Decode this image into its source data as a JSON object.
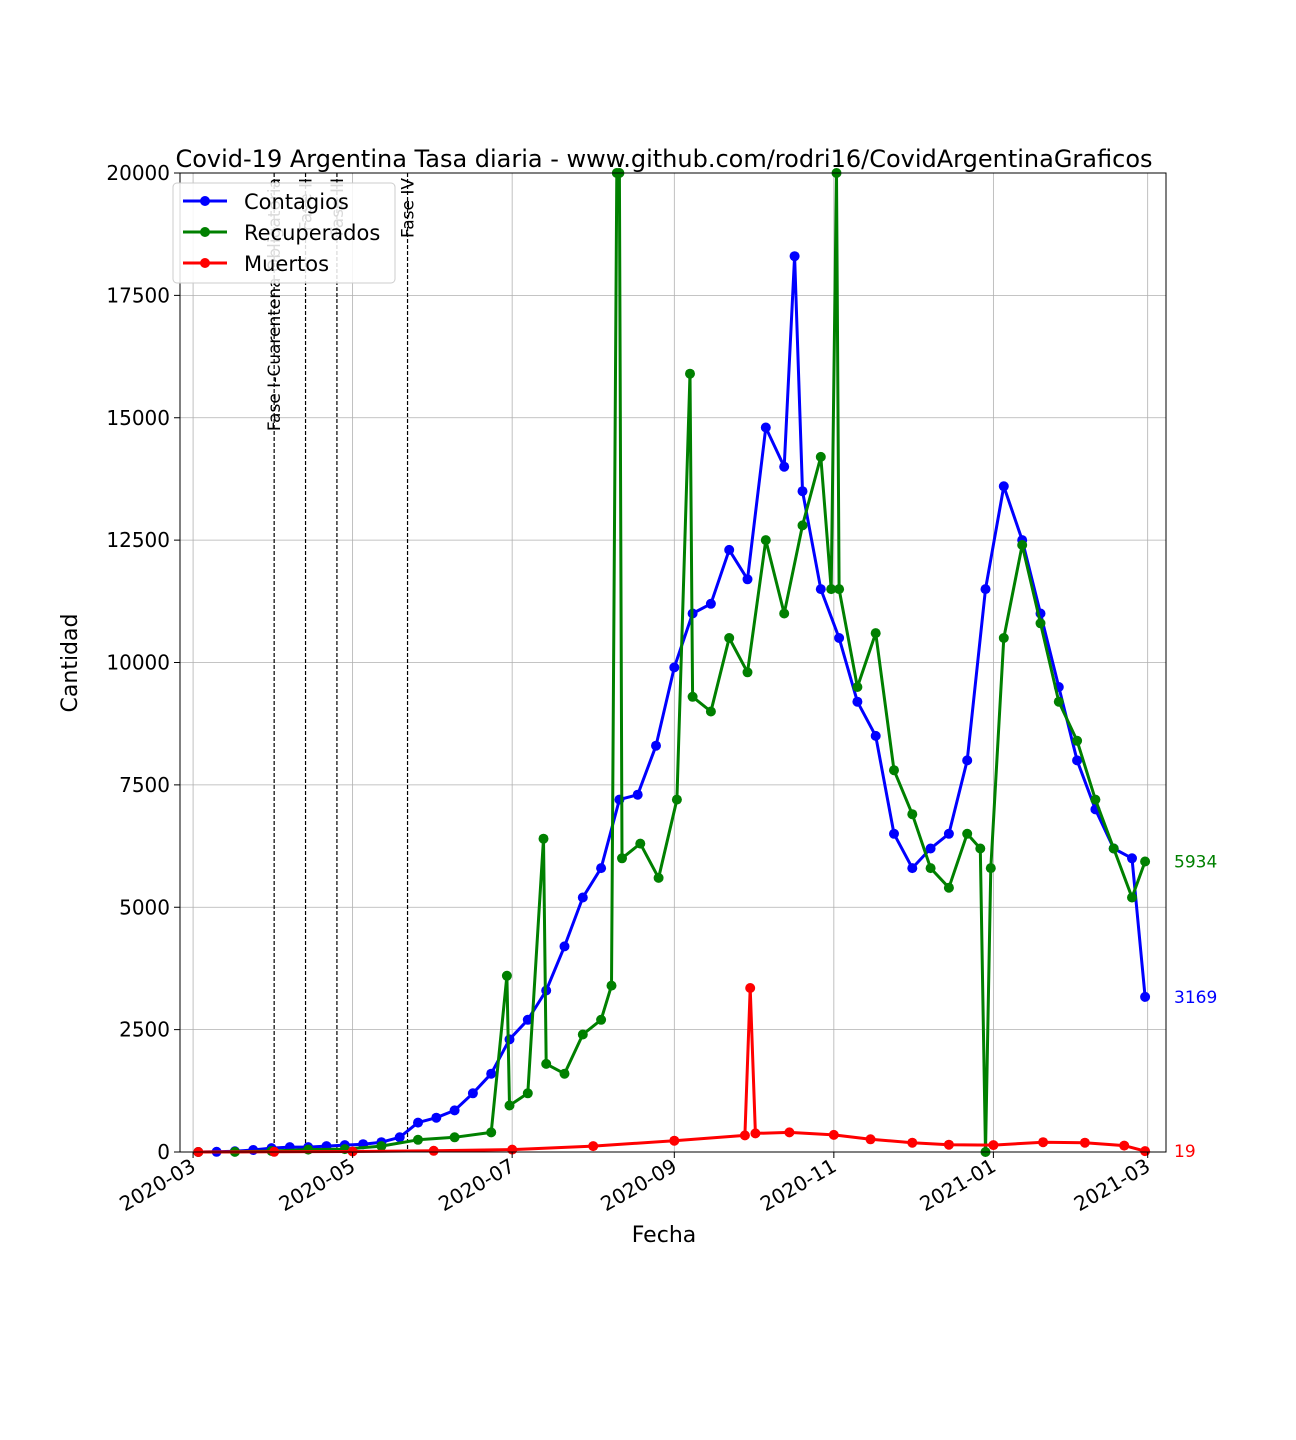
{
  "chart_data": {
    "type": "line",
    "title": "Covid-19 Argentina Tasa diaria - www.github.com/rodri16/CovidArgentinaGraficos",
    "xlabel": "Fecha",
    "ylabel": "Cantidad",
    "xlim": [
      "2020-02-25",
      "2021-03-08"
    ],
    "ylim": [
      0,
      20000
    ],
    "x_ticks": [
      "2020-03",
      "2020-05",
      "2020-07",
      "2020-09",
      "2020-11",
      "2021-01",
      "2021-03"
    ],
    "x_tick_dates": [
      "2020-03-01",
      "2020-05-01",
      "2020-07-01",
      "2020-09-01",
      "2020-11-01",
      "2021-01-01",
      "2021-03-01"
    ],
    "y_ticks": [
      0,
      2500,
      5000,
      7500,
      10000,
      12500,
      15000,
      17500,
      20000
    ],
    "grid": true,
    "legend_position": "top-left",
    "phases": [
      {
        "label": "Fase I-Cuarentena Obligatoria",
        "date": "2020-04-01"
      },
      {
        "label": "Fase II",
        "date": "2020-04-13"
      },
      {
        "label": "Fase III",
        "date": "2020-04-25"
      },
      {
        "label": "Fase IV",
        "date": "2020-05-22"
      }
    ],
    "series": [
      {
        "name": "Contagios",
        "color": "#0000ff",
        "end_label": "3169",
        "points": [
          [
            "2020-03-03",
            1
          ],
          [
            "2020-03-10",
            5
          ],
          [
            "2020-03-17",
            14
          ],
          [
            "2020-03-24",
            40
          ],
          [
            "2020-03-31",
            80
          ],
          [
            "2020-04-07",
            100
          ],
          [
            "2020-04-14",
            100
          ],
          [
            "2020-04-21",
            120
          ],
          [
            "2020-04-28",
            140
          ],
          [
            "2020-05-05",
            160
          ],
          [
            "2020-05-12",
            200
          ],
          [
            "2020-05-19",
            300
          ],
          [
            "2020-05-26",
            600
          ],
          [
            "2020-06-02",
            700
          ],
          [
            "2020-06-09",
            850
          ],
          [
            "2020-06-16",
            1200
          ],
          [
            "2020-06-23",
            1600
          ],
          [
            "2020-06-30",
            2300
          ],
          [
            "2020-07-07",
            2700
          ],
          [
            "2020-07-14",
            3300
          ],
          [
            "2020-07-21",
            4200
          ],
          [
            "2020-07-28",
            5200
          ],
          [
            "2020-08-04",
            5800
          ],
          [
            "2020-08-11",
            7200
          ],
          [
            "2020-08-18",
            7300
          ],
          [
            "2020-08-25",
            8300
          ],
          [
            "2020-09-01",
            9900
          ],
          [
            "2020-09-08",
            11000
          ],
          [
            "2020-09-15",
            11200
          ],
          [
            "2020-09-22",
            12300
          ],
          [
            "2020-09-29",
            11700
          ],
          [
            "2020-10-06",
            14800
          ],
          [
            "2020-10-13",
            14000
          ],
          [
            "2020-10-17",
            18300
          ],
          [
            "2020-10-20",
            13500
          ],
          [
            "2020-10-27",
            11500
          ],
          [
            "2020-11-03",
            10500
          ],
          [
            "2020-11-10",
            9200
          ],
          [
            "2020-11-17",
            8500
          ],
          [
            "2020-11-24",
            6500
          ],
          [
            "2020-12-01",
            5800
          ],
          [
            "2020-12-08",
            6200
          ],
          [
            "2020-12-15",
            6500
          ],
          [
            "2020-12-22",
            8000
          ],
          [
            "2020-12-29",
            11500
          ],
          [
            "2021-01-05",
            13600
          ],
          [
            "2021-01-12",
            12500
          ],
          [
            "2021-01-19",
            11000
          ],
          [
            "2021-01-26",
            9500
          ],
          [
            "2021-02-02",
            8000
          ],
          [
            "2021-02-09",
            7000
          ],
          [
            "2021-02-16",
            6200
          ],
          [
            "2021-02-23",
            6000
          ],
          [
            "2021-02-28",
            3169
          ]
        ]
      },
      {
        "name": "Recuperados",
        "color": "#008000",
        "end_label": "5934",
        "points": [
          [
            "2020-03-03",
            0
          ],
          [
            "2020-03-17",
            2
          ],
          [
            "2020-03-31",
            20
          ],
          [
            "2020-04-14",
            50
          ],
          [
            "2020-04-28",
            60
          ],
          [
            "2020-05-12",
            120
          ],
          [
            "2020-05-26",
            250
          ],
          [
            "2020-06-09",
            300
          ],
          [
            "2020-06-23",
            400
          ],
          [
            "2020-06-29",
            3600
          ],
          [
            "2020-06-30",
            950
          ],
          [
            "2020-07-07",
            1200
          ],
          [
            "2020-07-13",
            6400
          ],
          [
            "2020-07-14",
            1800
          ],
          [
            "2020-07-21",
            1600
          ],
          [
            "2020-07-28",
            2400
          ],
          [
            "2020-08-04",
            2700
          ],
          [
            "2020-08-08",
            3400
          ],
          [
            "2020-08-10",
            20000
          ],
          [
            "2020-08-11",
            20000
          ],
          [
            "2020-08-12",
            6000
          ],
          [
            "2020-08-19",
            6300
          ],
          [
            "2020-08-26",
            5600
          ],
          [
            "2020-09-02",
            7200
          ],
          [
            "2020-09-07",
            15900
          ],
          [
            "2020-09-08",
            9300
          ],
          [
            "2020-09-15",
            9000
          ],
          [
            "2020-09-22",
            10500
          ],
          [
            "2020-09-29",
            9800
          ],
          [
            "2020-10-06",
            12500
          ],
          [
            "2020-10-13",
            11000
          ],
          [
            "2020-10-20",
            12800
          ],
          [
            "2020-10-27",
            14200
          ],
          [
            "2020-10-31",
            11500
          ],
          [
            "2020-11-02",
            20000
          ],
          [
            "2020-11-03",
            11500
          ],
          [
            "2020-11-10",
            9500
          ],
          [
            "2020-11-17",
            10600
          ],
          [
            "2020-11-24",
            7800
          ],
          [
            "2020-12-01",
            6900
          ],
          [
            "2020-12-08",
            5800
          ],
          [
            "2020-12-15",
            5400
          ],
          [
            "2020-12-22",
            6500
          ],
          [
            "2020-12-27",
            6200
          ],
          [
            "2020-12-29",
            0
          ],
          [
            "2020-12-31",
            5800
          ],
          [
            "2021-01-05",
            10500
          ],
          [
            "2021-01-12",
            12400
          ],
          [
            "2021-01-19",
            10800
          ],
          [
            "2021-01-26",
            9200
          ],
          [
            "2021-02-02",
            8400
          ],
          [
            "2021-02-09",
            7200
          ],
          [
            "2021-02-16",
            6200
          ],
          [
            "2021-02-23",
            5200
          ],
          [
            "2021-02-28",
            5934
          ]
        ]
      },
      {
        "name": "Muertos",
        "color": "#ff0000",
        "end_label": "19",
        "points": [
          [
            "2020-03-03",
            0
          ],
          [
            "2020-04-01",
            5
          ],
          [
            "2020-05-01",
            10
          ],
          [
            "2020-06-01",
            25
          ],
          [
            "2020-07-01",
            50
          ],
          [
            "2020-08-01",
            120
          ],
          [
            "2020-09-01",
            230
          ],
          [
            "2020-09-28",
            340
          ],
          [
            "2020-09-30",
            3350
          ],
          [
            "2020-10-02",
            380
          ],
          [
            "2020-10-15",
            400
          ],
          [
            "2020-11-01",
            350
          ],
          [
            "2020-11-15",
            260
          ],
          [
            "2020-12-01",
            190
          ],
          [
            "2020-12-15",
            150
          ],
          [
            "2021-01-01",
            140
          ],
          [
            "2021-01-20",
            200
          ],
          [
            "2021-02-05",
            190
          ],
          [
            "2021-02-20",
            130
          ],
          [
            "2021-02-28",
            19
          ]
        ]
      }
    ]
  }
}
